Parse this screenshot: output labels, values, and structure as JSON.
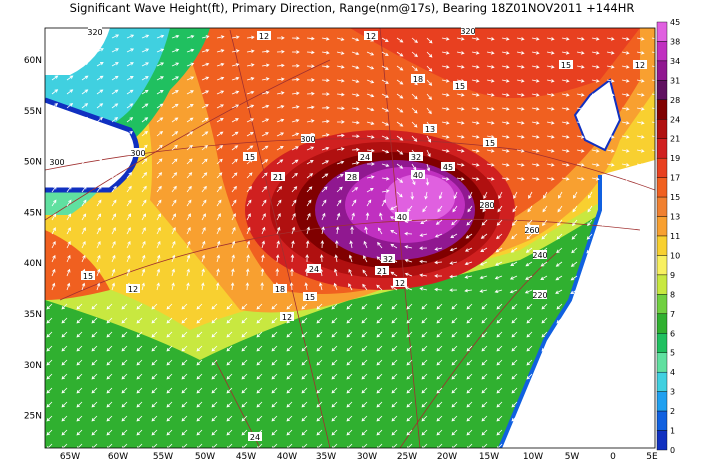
{
  "title": "Significant Wave Height(ft), Primary Direction, Range(nm@17s), Bearing 18Z01NOV2011 +144HR",
  "lat_labels": [
    "60N",
    "55N",
    "50N",
    "45N",
    "40N",
    "35N",
    "30N",
    "25N"
  ],
  "lon_labels": [
    "65W",
    "60W",
    "55W",
    "50W",
    "45W",
    "40W",
    "35W",
    "30W",
    "25W",
    "20W",
    "15W",
    "10W",
    "5W",
    "0",
    "5E"
  ],
  "colorbar": {
    "labels": [
      "45",
      "38",
      "34",
      "31",
      "28",
      "24",
      "21",
      "19",
      "17",
      "15",
      "13",
      "11",
      "10",
      "9",
      "8",
      "7",
      "6",
      "5",
      "4",
      "3",
      "2",
      "1",
      "0"
    ],
    "colors": [
      "#e060e0",
      "#c030c0",
      "#901890",
      "#601060",
      "#800000",
      "#b01010",
      "#d02020",
      "#e84020",
      "#f06020",
      "#f08030",
      "#f8a030",
      "#f8d030",
      "#f8f060",
      "#c8e840",
      "#70d040",
      "#30b030",
      "#20c060",
      "#60e0a0",
      "#40d0e0",
      "#20a0f0",
      "#1060e0",
      "#1030c0"
    ]
  },
  "contour_labels": [
    "320",
    "12",
    "320",
    "12",
    "15",
    "12",
    "18",
    "15",
    "13",
    "15",
    "300",
    "15",
    "21",
    "24",
    "32",
    "40",
    "28",
    "45",
    "40",
    "280",
    "260",
    "240",
    "220",
    "32",
    "24",
    "21",
    "18",
    "15",
    "12",
    "15",
    "12",
    "12",
    "300",
    "300",
    "24"
  ]
}
